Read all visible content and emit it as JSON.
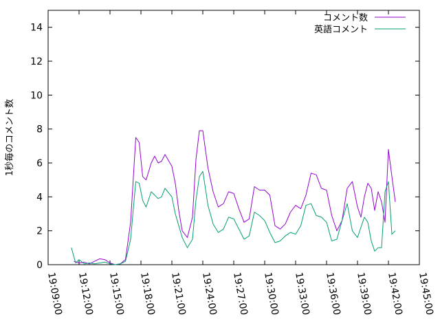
{
  "chart_data": {
    "type": "line",
    "title": "",
    "xlabel": "",
    "ylabel": "1秒毎のコメント数",
    "xlim": [
      "19:09:00",
      "19:45:00"
    ],
    "ylim": [
      0,
      15
    ],
    "x_ticks": [
      "19:09:00",
      "19:12:00",
      "19:15:00",
      "19:18:00",
      "19:21:00",
      "19:24:00",
      "19:27:00",
      "19:30:00",
      "19:33:00",
      "19:36:00",
      "19:39:00",
      "19:42:00",
      "19:45:00"
    ],
    "y_ticks": [
      0,
      2,
      4,
      6,
      8,
      10,
      12,
      14
    ],
    "grid": false,
    "legend_position": "top-right",
    "series": [
      {
        "name": "コメント数",
        "color": "#9400d3",
        "x": [
          "19:11:30",
          "19:12:00",
          "19:12:30",
          "19:13:00",
          "19:13:30",
          "19:14:00",
          "19:14:30",
          "19:15:00",
          "19:15:30",
          "19:16:00",
          "19:16:30",
          "19:17:00",
          "19:17:30",
          "19:17:50",
          "19:18:10",
          "19:18:30",
          "19:19:00",
          "19:19:20",
          "19:19:40",
          "19:20:00",
          "19:20:20",
          "19:21:00",
          "19:21:20",
          "19:21:40",
          "19:22:00",
          "19:22:30",
          "19:23:00",
          "19:23:20",
          "19:23:40",
          "19:24:00",
          "19:24:30",
          "19:25:00",
          "19:25:30",
          "19:26:00",
          "19:26:30",
          "19:27:00",
          "19:27:30",
          "19:28:00",
          "19:28:30",
          "19:29:00",
          "19:29:30",
          "19:30:00",
          "19:30:30",
          "19:31:00",
          "19:31:30",
          "19:32:00",
          "19:32:30",
          "19:33:00",
          "19:33:30",
          "19:34:00",
          "19:34:30",
          "19:35:00",
          "19:35:30",
          "19:36:00",
          "19:36:30",
          "19:37:00",
          "19:37:30",
          "19:38:00",
          "19:38:30",
          "19:39:00",
          "19:39:20",
          "19:39:40",
          "19:40:00",
          "19:40:20",
          "19:40:40",
          "19:41:00",
          "19:41:20",
          "19:41:40",
          "19:42:00",
          "19:42:20",
          "19:42:40"
        ],
        "y": [
          0.2,
          0.1,
          0.15,
          0.05,
          0.2,
          0.35,
          0.3,
          0.1,
          0.0,
          0.05,
          0.3,
          2.5,
          7.5,
          7.2,
          5.2,
          5.0,
          6.0,
          6.4,
          6.0,
          6.1,
          6.5,
          5.8,
          4.8,
          3.2,
          2.0,
          1.6,
          2.8,
          6.2,
          7.9,
          7.9,
          5.7,
          4.3,
          3.4,
          3.6,
          4.3,
          4.2,
          3.3,
          2.5,
          2.7,
          4.6,
          4.4,
          4.4,
          4.1,
          2.3,
          2.1,
          2.4,
          3.1,
          3.5,
          3.3,
          4.1,
          5.4,
          5.3,
          4.5,
          4.4,
          2.9,
          2.0,
          2.6,
          4.5,
          4.9,
          3.4,
          2.8,
          4.0,
          4.8,
          4.5,
          3.2,
          4.3,
          3.7,
          2.5,
          6.8,
          5.2,
          3.7
        ]
      },
      {
        "name": "英語コメント",
        "color": "#009e73",
        "x": [
          "19:11:15",
          "19:11:40",
          "19:12:00",
          "19:12:30",
          "19:13:00",
          "19:13:30",
          "19:14:00",
          "19:14:30",
          "19:15:00",
          "19:15:30",
          "19:16:00",
          "19:16:30",
          "19:17:00",
          "19:17:30",
          "19:17:50",
          "19:18:10",
          "19:18:30",
          "19:19:00",
          "19:19:20",
          "19:19:40",
          "19:20:00",
          "19:20:20",
          "19:21:00",
          "19:21:20",
          "19:21:40",
          "19:22:00",
          "19:22:30",
          "19:23:00",
          "19:23:20",
          "19:23:40",
          "19:24:00",
          "19:24:30",
          "19:25:00",
          "19:25:30",
          "19:26:00",
          "19:26:30",
          "19:27:00",
          "19:27:30",
          "19:28:00",
          "19:28:30",
          "19:29:00",
          "19:29:30",
          "19:30:00",
          "19:30:30",
          "19:31:00",
          "19:31:30",
          "19:32:00",
          "19:32:30",
          "19:33:00",
          "19:33:30",
          "19:34:00",
          "19:34:30",
          "19:35:00",
          "19:35:30",
          "19:36:00",
          "19:36:30",
          "19:37:00",
          "19:37:30",
          "19:38:00",
          "19:38:30",
          "19:39:00",
          "19:39:20",
          "19:39:40",
          "19:40:00",
          "19:40:20",
          "19:40:40",
          "19:41:00",
          "19:41:20",
          "19:41:40",
          "19:42:00",
          "19:42:20",
          "19:42:40"
        ],
        "y": [
          1.0,
          0.1,
          0.3,
          0.05,
          0.1,
          0.05,
          0.1,
          0.15,
          0.05,
          0.0,
          0.05,
          0.2,
          1.5,
          4.9,
          4.8,
          3.8,
          3.4,
          4.3,
          4.1,
          3.9,
          4.0,
          4.5,
          4.0,
          3.0,
          2.3,
          1.6,
          1.0,
          1.5,
          3.8,
          5.2,
          5.5,
          3.5,
          2.4,
          1.9,
          2.1,
          2.8,
          2.7,
          2.1,
          1.5,
          1.7,
          3.1,
          2.9,
          2.6,
          1.9,
          1.3,
          1.4,
          1.7,
          1.9,
          1.8,
          2.3,
          3.5,
          3.6,
          2.9,
          2.8,
          2.5,
          1.4,
          1.5,
          2.6,
          3.6,
          2.0,
          1.6,
          2.2,
          2.8,
          2.5,
          1.4,
          0.8,
          1.0,
          1.0,
          4.3,
          4.9,
          1.8,
          2.0
        ]
      }
    ]
  }
}
